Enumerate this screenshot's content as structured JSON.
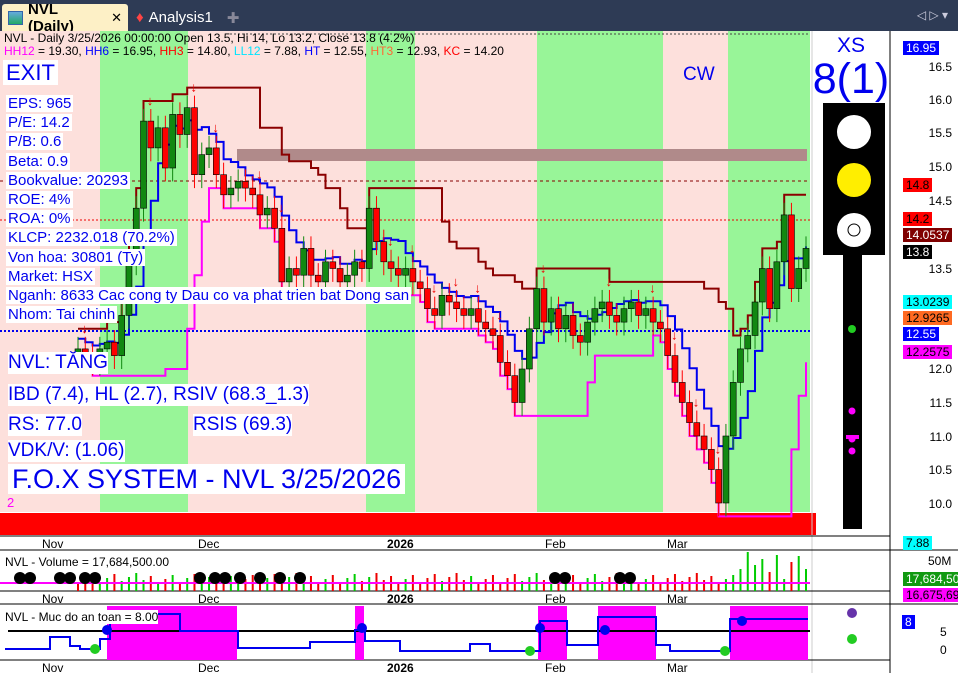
{
  "tabs": [
    {
      "label": "NVL (Daily)",
      "icon": "chart-icon",
      "active": true
    },
    {
      "label": "Analysis1",
      "icon": "analysis-icon"
    }
  ],
  "header": {
    "line1": "NVL - Daily 3/25/2026 00:00:00 Open 13.5, Hi 14, Lo 13.2, Close 13.8 (4.2%)",
    "indicators": [
      {
        "label": "HH12",
        "value": "19.30",
        "color": "#ff00ff"
      },
      {
        "label": "HH6",
        "value": "16.95",
        "color": "#0000ff"
      },
      {
        "label": "HH3",
        "value": "14.80",
        "color": "#ff0000"
      },
      {
        "label": "LL12",
        "value": "7.88",
        "color": "#00e5ff"
      },
      {
        "label": "HT ",
        "value": "12.55",
        "color": "#0000ff"
      },
      {
        "label": "HT3 ",
        "value": "12.93",
        "color": "#ff6a33"
      },
      {
        "label": "KC",
        "value": "14.20",
        "color": "#ff0000"
      }
    ]
  },
  "signal": "EXIT",
  "cw": "CW",
  "fundamentals": [
    "EPS: 965",
    "P/E: 14.2",
    "P/B: 0.6",
    "Beta: 0.9",
    "Bookvalue: 20293",
    "ROE: 4%",
    "ROA: 0%",
    "KLCP: 2232.018 (70.2%)",
    "Von hoa: 30801 (Ty)",
    "Market: HSX",
    "Nganh: 8633 Cac cong ty Dau co va phat trien bat Dong san",
    "Nhom: Tai chinh"
  ],
  "status": {
    "trend": "NVL: TĂNG",
    "ibd": "IBD (7.4), HL (2.7), RSIV (68.3_1.3)",
    "rs": "RS: 77.0",
    "rsis": "RSIS (69.3)",
    "vdk": "VDK/V:  (1.06)",
    "system": "F.O.X SYSTEM - NVL 3/25/2026",
    "count": "2"
  },
  "rating": {
    "label": "XS",
    "value": "8(1)"
  },
  "price_axis": {
    "ticks": [
      "16.5",
      "16.0",
      "15.5",
      "15.0",
      "14.5",
      "13.5",
      "12.0",
      "11.5",
      "11.0",
      "10.5",
      "10.0"
    ],
    "tags": [
      {
        "text": "16.95",
        "bg": "#0000ff",
        "fg": "#fff"
      },
      {
        "text": "14.8",
        "bg": "#ff0000",
        "fg": "#000"
      },
      {
        "text": "14.2",
        "bg": "#ff0000",
        "fg": "#000"
      },
      {
        "text": "14.0537",
        "bg": "#800000",
        "fg": "#fff"
      },
      {
        "text": "13.8",
        "bg": "#000",
        "fg": "#fff"
      },
      {
        "text": "13.0239",
        "bg": "#00ffff",
        "fg": "#000"
      },
      {
        "text": "12.9265",
        "bg": "#ff6a22",
        "fg": "#000"
      },
      {
        "text": "12.55",
        "bg": "#0000ff",
        "fg": "#fff"
      },
      {
        "text": "12.2575",
        "bg": "#ff00ff",
        "fg": "#000"
      },
      {
        "text": "7.88",
        "bg": "#00ffff",
        "fg": "#000"
      }
    ]
  },
  "dates": [
    "Nov",
    "Dec",
    "2026",
    "Feb",
    "Mar"
  ],
  "closes": [
    12.3,
    12.2,
    12.1,
    12.3,
    12.4,
    12.2,
    12.8,
    13.6,
    14.4,
    15.7,
    15.3,
    15.6,
    15.0,
    15.8,
    15.5,
    15.9,
    14.9,
    15.2,
    15.3,
    14.9,
    14.6,
    14.7,
    14.8,
    14.7,
    14.6,
    14.3,
    14.4,
    14.1,
    13.3,
    13.5,
    13.4,
    13.8,
    13.4,
    13.3,
    13.6,
    13.5,
    13.3,
    13.4,
    13.6,
    13.5,
    14.4,
    13.9,
    13.6,
    13.5,
    13.4,
    13.5,
    13.3,
    13.2,
    12.9,
    12.8,
    13.1,
    13.0,
    12.9,
    12.8,
    12.9,
    12.7,
    12.6,
    12.5,
    12.1,
    11.9,
    11.5,
    12.0,
    12.6,
    13.2,
    12.7,
    12.9,
    12.6,
    12.8,
    12.5,
    12.4,
    12.7,
    12.9,
    13.0,
    12.8,
    12.7,
    12.9,
    13.0,
    12.8,
    12.9,
    12.7,
    12.6,
    12.2,
    11.8,
    11.5,
    11.2,
    11.0,
    10.8,
    10.5,
    10.0,
    11.0,
    11.8,
    12.3,
    12.5,
    13.0,
    13.5,
    12.9,
    13.6,
    14.3,
    13.2,
    13.5,
    13.8
  ],
  "volume": {
    "title": "NVL - Volume = 17,684,500.00",
    "axis": "50M",
    "tag1": "17,684,500",
    "tag2": "16,675,69"
  },
  "safety": {
    "title": "NVL - Muc do an toan = 8.00",
    "ticks": [
      "5",
      "0"
    ],
    "tag": "8"
  },
  "colors": {
    "green_band": "#98f598",
    "pink_band": "#fde0dc",
    "up": "#118811",
    "down": "#ff0000"
  }
}
